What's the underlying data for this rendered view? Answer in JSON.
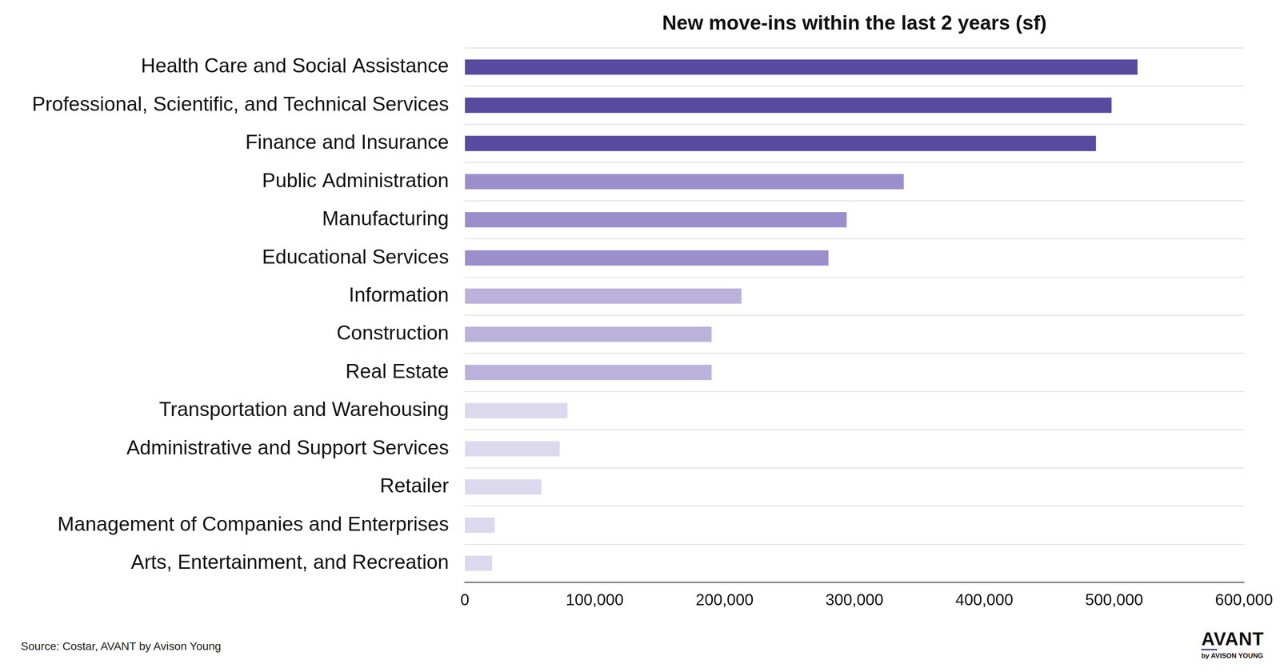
{
  "chart_data": {
    "type": "bar",
    "orientation": "horizontal",
    "title": "New move-ins within the last 2 years (sf)",
    "categories": [
      "Health Care and Social Assistance",
      "Professional, Scientific, and Technical Services",
      "Finance and Insurance",
      "Public Administration",
      "Manufacturing",
      "Educational Services",
      "Information",
      "Construction",
      "Real Estate",
      "Transportation and Warehousing",
      "Administrative and Support Services",
      "Retailer",
      "Management of Companies and Enterprises",
      "Arts, Entertainment, and Recreation"
    ],
    "values": [
      518000,
      498000,
      486000,
      338000,
      294000,
      280000,
      213000,
      190000,
      190000,
      79000,
      73000,
      59000,
      23000,
      21000
    ],
    "colors": [
      "#584a9e",
      "#584a9e",
      "#584a9e",
      "#9a8fcb",
      "#9a8fcb",
      "#9a8fcb",
      "#bab2db",
      "#bab2db",
      "#bab2db",
      "#dcd8ee",
      "#dcd8ee",
      "#dcd8ee",
      "#dcd8ee",
      "#dcd8ee"
    ],
    "xlim": [
      0,
      600000
    ],
    "xticks": [
      0,
      {
        "value": 100000,
        "label": "100,000"
      },
      {
        "value": 200000,
        "label": "200,000"
      },
      {
        "value": 300000,
        "label": "300,000"
      },
      {
        "value": 400000,
        "label": "400,000"
      },
      {
        "value": 500000,
        "label": "500,000"
      },
      {
        "value": 600000,
        "label": "600,000"
      }
    ],
    "grid": true,
    "source": "Source: Costar, AVANT by Avison Young",
    "logo": {
      "text": "AVANT",
      "subtitle": "by AVISON YOUNG"
    }
  }
}
